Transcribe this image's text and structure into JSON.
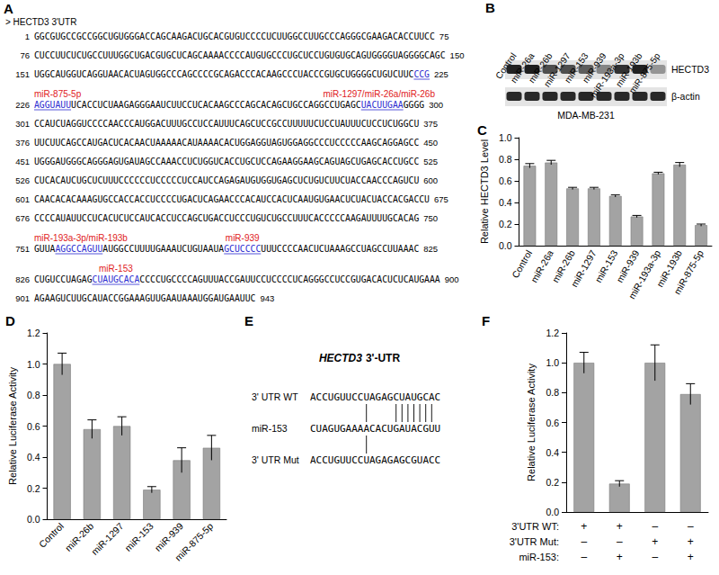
{
  "panels": {
    "A": {
      "letter": "A",
      "header": "> HECTD3 3'UTR",
      "lines": [
        {
          "start": 1,
          "end": 75,
          "segments": [
            {
              "text": "GGCGUGCCGCCGGCUGUGGGACCAGCAAGACUGCACGUGUCCCCUCUUGGCCUUGCCCAGGGCGAAGACACCUUCC"
            }
          ]
        },
        {
          "start": 76,
          "end": 150,
          "segments": [
            {
              "text": "CUCCUUCUCUGCCUUUGGCUGACGUGCUCAGCAAAACCCCAUGUGCCCUGCUCCUGUGUGCAGUGGGGUAGGGGCAGC"
            }
          ]
        },
        {
          "start": 151,
          "end": 225,
          "segments": [
            {
              "text": "UGGCAUGGUCAGGUAACACUAGUGGCCCAGCCCCGCAGACCCACAAGCCCUACCCGUGCUGGGGCUGUCUUC"
            },
            {
              "text": "CCG",
              "underline": true
            }
          ]
        },
        {
          "start": 226,
          "end": 300,
          "segments": [
            {
              "text": "AGGUAUU",
              "underline": true,
              "site": "miR-875-5p"
            },
            {
              "text": "UCACCUCUAAGAGGGAAUCUUCCUCACAAGCCCAGCACAGCUGCCAGGCCUGAGC"
            },
            {
              "text": "UACUUGAA",
              "underline": true,
              "site": "miR-1297/miR-26a/miR-26b"
            },
            {
              "text": "GGGG"
            }
          ]
        },
        {
          "start": 301,
          "end": 375,
          "segments": [
            {
              "text": "CCAUCUAGGUCCCCAACCCAUGGACUUUGCCUCCAUUUCAGCUCCGCCUUUUUCUCCUAUUUCUCCUCUGGCU"
            }
          ]
        },
        {
          "start": 376,
          "end": 450,
          "segments": [
            {
              "text": "UUCUUCAGCCAUGACUCACAACUAAAAACAUAAAACACUGGAGGUAGUGGAGGCCCUCCCCCAAGCAGGAGCC"
            }
          ]
        },
        {
          "start": 451,
          "end": 525,
          "segments": [
            {
              "text": "UGGGAUGGGCAGGGAGUGAUAGCCAAACCUCUGGUCACCUGCUCCAGAAGGAAGCAGUAGCUGAGCACCUGCC"
            }
          ]
        },
        {
          "start": 526,
          "end": 600,
          "segments": [
            {
              "text": "CUCACAUCUGCUCUUUCCCCCCUCCCCCUCCAUCCAGAGAUGUGGUGAGCUCUGUCUUCUACCAACCCAGUCU"
            }
          ]
        },
        {
          "start": 601,
          "end": 675,
          "segments": [
            {
              "text": "CAACACACAAAGUGCCACCACCUCCCCUGACUCAGAACCCACAUCCACUCAAUGUGAACUCUACUACCACGACCU"
            }
          ]
        },
        {
          "start": 676,
          "end": 750,
          "segments": [
            {
              "text": "CCCCAUAUUCCUCACUCUCCAUCACCUCCAGCUGACCUCCCUGUCUGCCUUUCACCCCCAAGAUUUUGCACAG"
            }
          ]
        },
        {
          "start": 751,
          "end": 825,
          "segments": [
            {
              "text": "GUUA"
            },
            {
              "text": "AGGCCAGUU",
              "underline": true,
              "site": "miR-193a-3p/miR-193b"
            },
            {
              "text": "AUGGCCUUUUGAAAUCUGUAAUA"
            },
            {
              "text": "GCUCCCC",
              "underline": true,
              "site": "miR-939"
            },
            {
              "text": "UUUCCCCAACUCUAAAGCCUAGCCUUAAAC"
            }
          ]
        },
        {
          "start": 826,
          "end": 900,
          "segments": [
            {
              "text": "CUGUCCUAGAG"
            },
            {
              "text": "CUAUGCACA",
              "underline": true,
              "site": "miR-153"
            },
            {
              "text": "CCCCUGCCCCAGUUUACCGAUUCCUCCCCUCAGGGCCUCCGUGACACUCUCAUGAAA"
            }
          ]
        },
        {
          "start": 901,
          "end": 943,
          "segments": [
            {
              "text": "AGAAGUCUUGCAUACCGGAAAGUUGAAUAAAUGGAUGAAUUC"
            }
          ]
        }
      ]
    },
    "B": {
      "letter": "B",
      "lanes": [
        "Control",
        "miR-26a",
        "miR-26b",
        "miR-1297",
        "miR-153",
        "miR-939",
        "miR-193a-3p",
        "miR-193b",
        "miR-875-5p"
      ],
      "rows": [
        "HECTD3",
        "β-actin"
      ],
      "cell_line": "MDA-MB-231"
    },
    "E": {
      "letter": "E",
      "title": "HECTD3 3'-UTR",
      "rows": [
        {
          "label": "3' UTR WT",
          "seq": "ACCUGUUCCUAGAGCUAUGCAC"
        },
        {
          "label": "miR-153",
          "seq": "CUAGUGAAAACACUGAUACGUU"
        },
        {
          "label": "3' UTR Mut",
          "seq": "ACCUGUUCCUAGAGAGCGUACC"
        }
      ],
      "pairs": [
        [
          9,
          14,
          15,
          16,
          17,
          18,
          19,
          20
        ],
        [
          9
        ]
      ]
    }
  },
  "chart_data": [
    {
      "letter": "C",
      "type": "bar",
      "y_label": "Relative HECTD3 Level",
      "categories": [
        "Control",
        "miR-26a",
        "miR-26b",
        "miR-1297",
        "miR-153",
        "miR-939",
        "miR-193a-3p",
        "miR-193b",
        "miR-875-5p"
      ],
      "values": [
        0.74,
        0.77,
        0.53,
        0.53,
        0.46,
        0.27,
        0.67,
        0.75,
        0.19
      ],
      "errors": [
        0.02,
        0.02,
        0.01,
        0.01,
        0.01,
        0.01,
        0.01,
        0.02,
        0.01
      ],
      "color": "#a3a3a3",
      "ylim": [
        0,
        1.0
      ],
      "yticks": [
        {
          "value": 0,
          "label": "0.0"
        },
        0.2,
        0.4,
        0.6,
        0.8,
        {
          "value": 1.0,
          "label": "1.0"
        }
      ],
      "grid": false
    },
    {
      "letter": "D",
      "type": "bar",
      "y_label": "Relative Luciferase Activity",
      "categories": [
        "Control",
        "miR-26b",
        "miR-1297",
        "miR-153",
        "miR-939",
        "miR-875-5p"
      ],
      "values": [
        1.0,
        0.58,
        0.6,
        0.19,
        0.38,
        0.46
      ],
      "errors": [
        0.07,
        0.06,
        0.06,
        0.02,
        0.08,
        0.08
      ],
      "color": "#a3a3a3",
      "ylim": [
        0,
        1.2
      ],
      "yticks": [
        {
          "value": 0,
          "label": "0.0"
        },
        0.2,
        0.4,
        0.6,
        0.8,
        {
          "value": 1.0,
          "label": "1.0"
        },
        1.2
      ],
      "grid": false
    },
    {
      "letter": "F",
      "type": "bar",
      "y_label": "Relative Luciferase Activity",
      "categories": [
        null,
        null,
        null,
        null
      ],
      "values": [
        1.0,
        0.19,
        1.0,
        0.79
      ],
      "errors": [
        0.07,
        0.02,
        0.12,
        0.07
      ],
      "color": "#a3a3a3",
      "ylim": [
        0,
        1.2
      ],
      "yticks": [
        {
          "value": 0,
          "label": "0.0"
        },
        0.2,
        0.4,
        0.6,
        0.8,
        {
          "value": 1.0,
          "label": "1.0"
        },
        1.2
      ],
      "grid": false,
      "conditions": [
        {
          "label": "3'UTR WT:",
          "marks": [
            "+",
            "+",
            "–",
            "–"
          ]
        },
        {
          "label": "3'UTR Mut:",
          "marks": [
            "–",
            "–",
            "+",
            "+"
          ]
        },
        {
          "label": "miR-153:",
          "marks": [
            "–",
            "+",
            "–",
            "+"
          ]
        }
      ]
    }
  ]
}
